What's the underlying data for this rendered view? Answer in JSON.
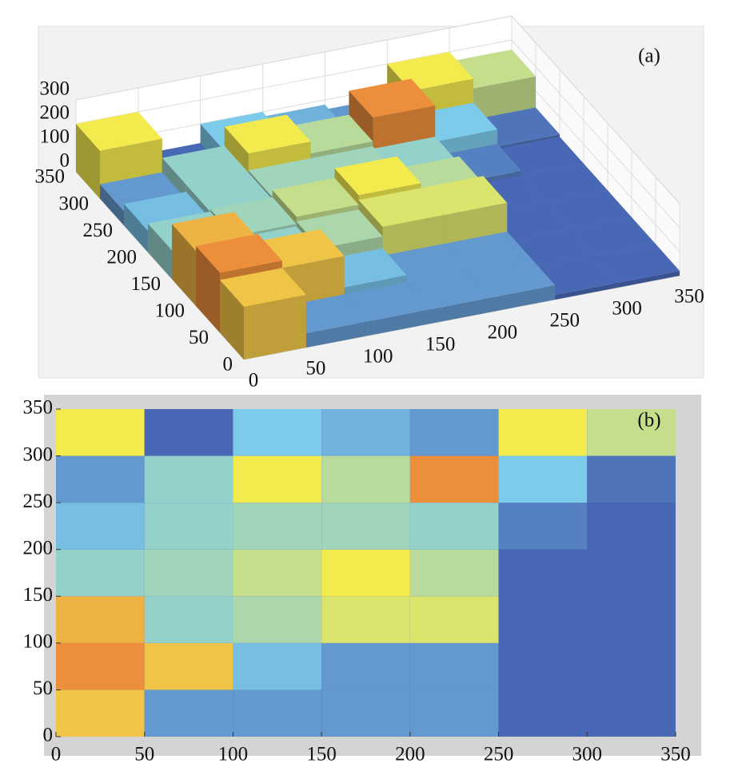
{
  "chart_data": [
    {
      "type": "surface",
      "label": "(a)",
      "x": [
        25,
        75,
        125,
        175,
        225,
        275,
        325
      ],
      "y": [
        25,
        75,
        125,
        175,
        225,
        275,
        325
      ],
      "z": [
        [
          220,
          60,
          60,
          60,
          60,
          20,
          20
        ],
        [
          250,
          220,
          90,
          60,
          60,
          20,
          20
        ],
        [
          230,
          120,
          140,
          180,
          180,
          20,
          20
        ],
        [
          120,
          130,
          160,
          200,
          150,
          20,
          20
        ],
        [
          90,
          120,
          130,
          130,
          120,
          40,
          20
        ],
        [
          60,
          120,
          200,
          150,
          250,
          100,
          30
        ],
        [
          200,
          20,
          100,
          80,
          60,
          200,
          160
        ]
      ],
      "xlim": [
        0,
        350
      ],
      "ylim": [
        0,
        350
      ],
      "zlim": [
        0,
        300
      ],
      "xticks": [
        0,
        50,
        100,
        150,
        200,
        250,
        300,
        350
      ],
      "yticks": [
        0,
        50,
        100,
        150,
        200,
        250,
        300,
        350
      ],
      "zticks": [
        0,
        100,
        200,
        300
      ],
      "colorscale": [
        "#3b4ea6",
        "#7dcbea",
        "#f3ea4e",
        "#e5322a"
      ],
      "grid": true
    },
    {
      "type": "heatmap",
      "label": "(b)",
      "x": [
        25,
        75,
        125,
        175,
        225,
        275,
        325
      ],
      "y": [
        25,
        75,
        125,
        175,
        225,
        275,
        325
      ],
      "z": [
        [
          220,
          60,
          60,
          60,
          60,
          20,
          20
        ],
        [
          250,
          220,
          90,
          60,
          60,
          20,
          20
        ],
        [
          230,
          120,
          140,
          180,
          180,
          20,
          20
        ],
        [
          120,
          130,
          160,
          200,
          150,
          20,
          20
        ],
        [
          90,
          120,
          130,
          130,
          120,
          40,
          20
        ],
        [
          60,
          120,
          200,
          150,
          250,
          100,
          30
        ],
        [
          200,
          20,
          100,
          80,
          60,
          200,
          160
        ]
      ],
      "xlim": [
        0,
        350
      ],
      "ylim": [
        0,
        350
      ],
      "clim": [
        0,
        300
      ],
      "xticks": [
        0,
        50,
        100,
        150,
        200,
        250,
        300,
        350
      ],
      "yticks": [
        0,
        50,
        100,
        150,
        200,
        250,
        300,
        350
      ],
      "colorscale": [
        "#3b4ea6",
        "#7dcbea",
        "#f3ea4e",
        "#e5322a"
      ]
    }
  ]
}
